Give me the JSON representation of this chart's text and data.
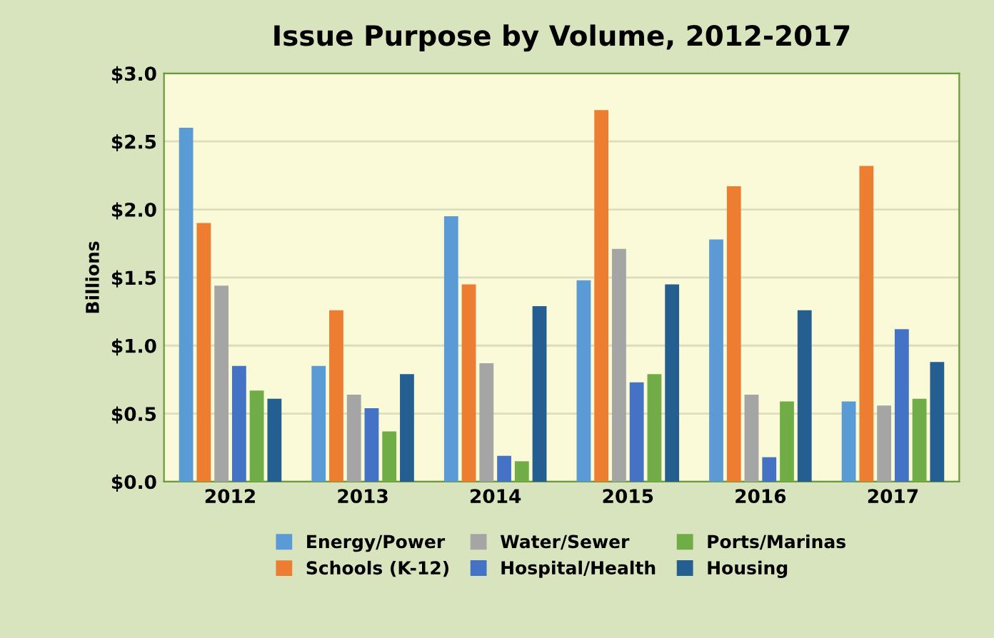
{
  "chart_data": {
    "type": "bar",
    "title": "Issue Purpose by Volume, 2012-2017",
    "ylabel": "Billions",
    "categories": [
      "2012",
      "2013",
      "2014",
      "2015",
      "2016",
      "2017"
    ],
    "series": [
      {
        "name": "Energy/Power",
        "color": "#5b9bd5",
        "values": [
          2.6,
          0.85,
          1.95,
          1.48,
          1.78,
          0.59
        ]
      },
      {
        "name": "Schools (K-12)",
        "color": "#ed7d31",
        "values": [
          1.9,
          1.26,
          1.45,
          2.73,
          2.17,
          2.32
        ]
      },
      {
        "name": "Water/Sewer",
        "color": "#a5a5a5",
        "values": [
          1.44,
          0.64,
          0.87,
          1.71,
          0.64,
          0.56
        ]
      },
      {
        "name": "Hospital/Health",
        "color": "#4472c4",
        "values": [
          0.85,
          0.54,
          0.19,
          0.73,
          0.18,
          1.12
        ]
      },
      {
        "name": "Ports/Marinas",
        "color": "#70ad47",
        "values": [
          0.67,
          0.37,
          0.15,
          0.79,
          0.59,
          0.61
        ]
      },
      {
        "name": "Housing",
        "color": "#255e91",
        "values": [
          0.61,
          0.79,
          1.29,
          1.45,
          1.26,
          0.88
        ]
      }
    ],
    "ylim": [
      0,
      3.0
    ],
    "yticks": [
      {
        "value": 0,
        "label": "$0.0"
      },
      {
        "value": 0.5,
        "label": "$0.5"
      },
      {
        "value": 1.0,
        "label": "$1.0"
      },
      {
        "value": 1.5,
        "label": "$1.5"
      },
      {
        "value": 2.0,
        "label": "$2.0"
      },
      {
        "value": 2.5,
        "label": "$2.5"
      },
      {
        "value": 3.0,
        "label": "$3.0"
      }
    ],
    "grid": "y",
    "legend": "bottom"
  }
}
